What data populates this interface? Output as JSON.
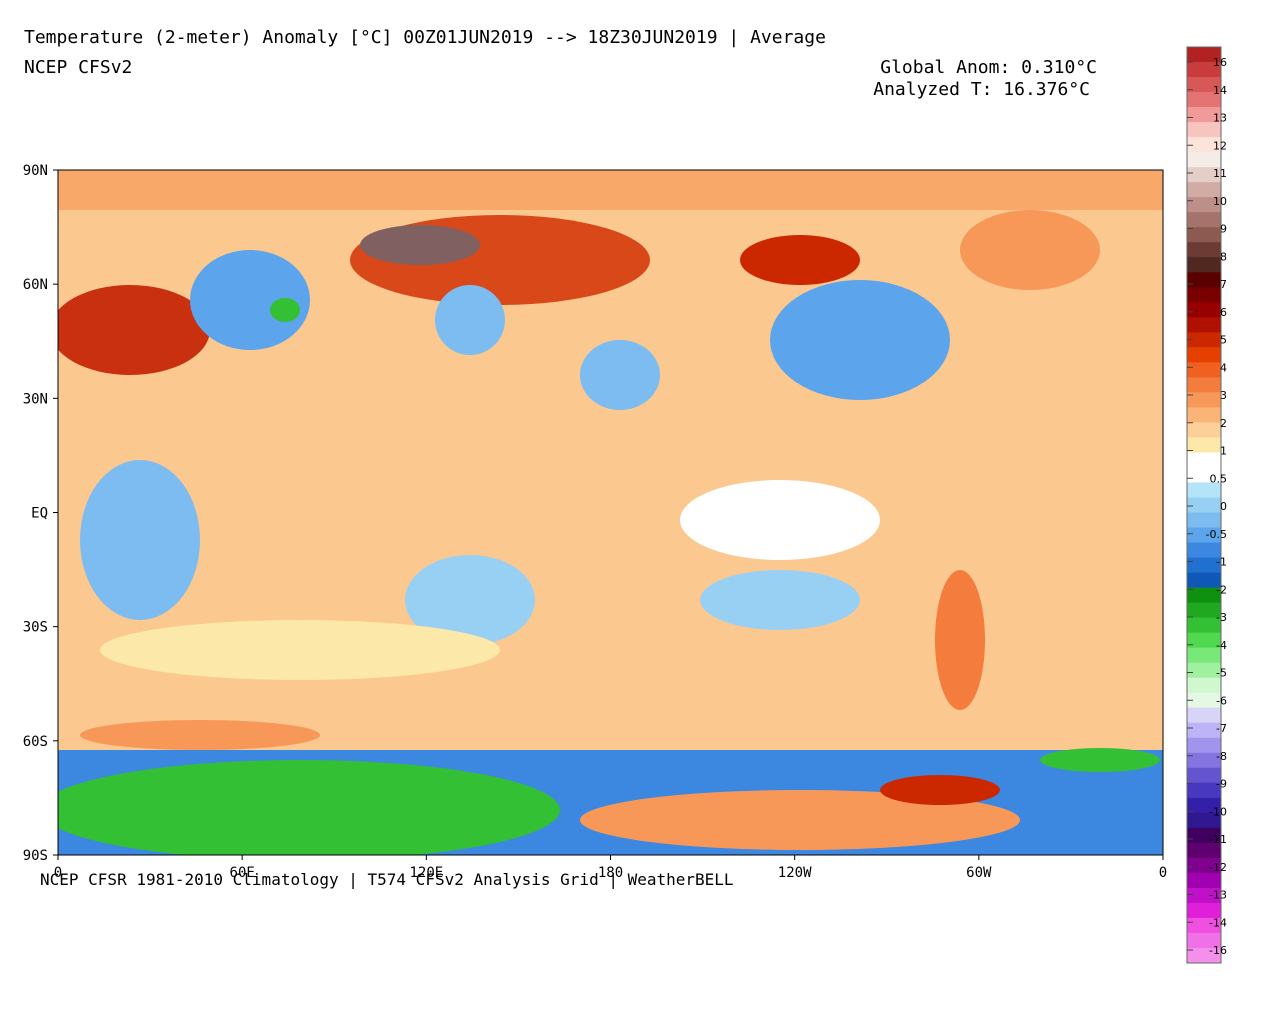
{
  "header": {
    "title": "Temperature (2-meter) Anomaly  [°C] 00Z01JUN2019 --> 18Z30JUN2019 | Average",
    "subtitle": "NCEP CFSv2",
    "global_anom": "Global Anom: 0.310°C",
    "analyzed_t": "Analyzed T: 16.376°C"
  },
  "map": {
    "lat_labels": [
      "90N",
      "60N",
      "30N",
      "EQ",
      "30S",
      "60S",
      "90S"
    ],
    "lon_labels": [
      "0",
      "60E",
      "120E",
      "180",
      "120W",
      "60W",
      "0"
    ]
  },
  "footer": "NCEP CFSR 1981-2010 Climatology | T574 CFSv2 Analysis Grid | WeatherBELL",
  "colorbar": {
    "labels": [
      "16",
      "14",
      "13",
      "12",
      "11",
      "10",
      "9",
      "8",
      "7",
      "6",
      "5",
      "4",
      "3",
      "2",
      "1",
      "0.5",
      "0",
      "-0.5",
      "-1",
      "-2",
      "-3",
      "-4",
      "-5",
      "-6",
      "-7",
      "-8",
      "-9",
      "-10",
      "-11",
      "-12",
      "-13",
      "-14",
      "-16"
    ],
    "colors": [
      "#b22222",
      "#c83c3c",
      "#d85858",
      "#e47474",
      "#f09a9a",
      "#f8c4c0",
      "#fce4dc",
      "#f4ece6",
      "#e4cec8",
      "#d0aca4",
      "#bc9088",
      "#a4746c",
      "#8c5a50",
      "#6c3c34",
      "#502820",
      "#5a0000",
      "#780000",
      "#960000",
      "#b01000",
      "#cc2800",
      "#e44000",
      "#f06020",
      "#f47c3c",
      "#f89858",
      "#fab478",
      "#fcd098",
      "#fce8a8",
      "#ffffff",
      "#ffffff",
      "#b4e4f8",
      "#98d0f4",
      "#7cbcf0",
      "#5ca4ec",
      "#3c88e0",
      "#2070d0",
      "#1058b8",
      "#109010",
      "#20a820",
      "#34c034",
      "#50d850",
      "#78e878",
      "#a0f0a0",
      "#cff8cf",
      "#e4f8e4",
      "#d8d4f8",
      "#bcb4f4",
      "#a094ec",
      "#8474e0",
      "#6454d0",
      "#4838c0",
      "#3420a8",
      "#301890",
      "#400060",
      "#600070",
      "#800090",
      "#a000b0",
      "#c010c8",
      "#e020d8",
      "#f050e0",
      "#f070e8",
      "#f490ec"
    ]
  }
}
